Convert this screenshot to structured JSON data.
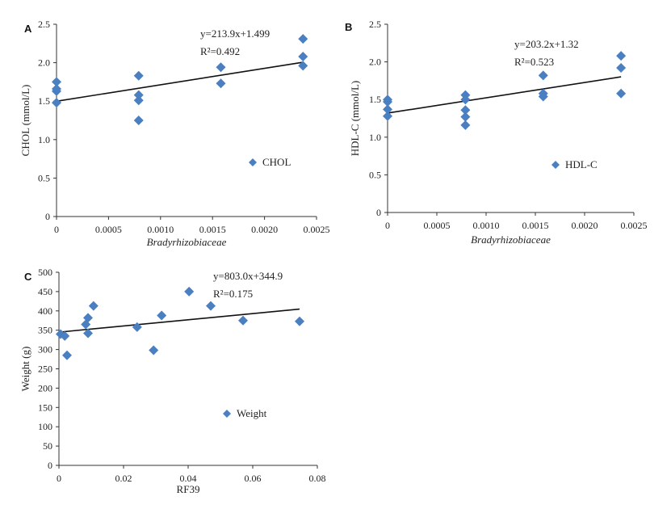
{
  "chart_data": [
    {
      "panel": "A",
      "type": "scatter",
      "xlabel": "Bradyrhizobiaceae",
      "ylabel": "CHOL (mmol/L)",
      "xlim": [
        0,
        0.0025
      ],
      "ylim": [
        0,
        2.5
      ],
      "x_ticks": [
        "0",
        "0.0005",
        "0.0010",
        "0.0015",
        "0.0020",
        "0.0025"
      ],
      "y_ticks": [
        "0",
        "0.5",
        "1.0",
        "1.5",
        "2.0",
        "2.5"
      ],
      "equation": "y=213.9x+1.499",
      "r2": "R²=0.492",
      "legend": "CHOL",
      "color": "#4a7fc1",
      "trendline": {
        "slope": 213.9,
        "intercept": 1.499,
        "x_start": 0,
        "x_end": 0.00237
      },
      "points": [
        [
          0,
          1.75
        ],
        [
          0,
          1.66
        ],
        [
          0,
          1.63
        ],
        [
          0,
          1.48
        ],
        [
          0.00079,
          1.83
        ],
        [
          0.00079,
          1.58
        ],
        [
          0.00079,
          1.51
        ],
        [
          0.00079,
          1.25
        ],
        [
          0.00158,
          1.94
        ],
        [
          0.00158,
          1.73
        ],
        [
          0.00237,
          2.31
        ],
        [
          0.00237,
          2.08
        ],
        [
          0.00237,
          1.96
        ]
      ]
    },
    {
      "panel": "B",
      "type": "scatter",
      "xlabel": "Bradyrhizobiaceae",
      "ylabel": "HDL-C (mmol/L)",
      "xlim": [
        0,
        0.0025
      ],
      "ylim": [
        0,
        2.5
      ],
      "x_ticks": [
        "0",
        "0.0005",
        "0.0010",
        "0.0015",
        "0.0020",
        "0.0025"
      ],
      "y_ticks": [
        "0",
        "0.5",
        "1.0",
        "1.5",
        "2.0",
        "2.5"
      ],
      "equation": "y=203.2x+1.32",
      "r2": "R²=0.523",
      "legend": "HDL-C",
      "color": "#4a7fc1",
      "trendline": {
        "slope": 203.2,
        "intercept": 1.32,
        "x_start": 0,
        "x_end": 0.00237
      },
      "points": [
        [
          0,
          1.5
        ],
        [
          0,
          1.47
        ],
        [
          0,
          1.37
        ],
        [
          0,
          1.28
        ],
        [
          0.00079,
          1.56
        ],
        [
          0.00079,
          1.5
        ],
        [
          0.00079,
          1.36
        ],
        [
          0.00079,
          1.27
        ],
        [
          0.00079,
          1.16
        ],
        [
          0.00158,
          1.82
        ],
        [
          0.00158,
          1.58
        ],
        [
          0.00158,
          1.54
        ],
        [
          0.00237,
          2.08
        ],
        [
          0.00237,
          1.92
        ],
        [
          0.00237,
          1.58
        ]
      ]
    },
    {
      "panel": "C",
      "type": "scatter",
      "xlabel": "RF39",
      "ylabel": "Weight (g)",
      "xlim": [
        0,
        0.08
      ],
      "ylim": [
        0,
        500
      ],
      "x_ticks": [
        "0",
        "0.02",
        "0.04",
        "0.06",
        "0.08"
      ],
      "y_ticks": [
        "0",
        "50",
        "100",
        "150",
        "200",
        "250",
        "300",
        "350",
        "400",
        "450",
        "500"
      ],
      "equation": "y=803.0x+344.9",
      "r2": "R²=0.175",
      "legend": "Weight",
      "color": "#4a7fc1",
      "trendline": {
        "slope": 803.0,
        "intercept": 344.9,
        "x_start": 0,
        "x_end": 0.0745
      },
      "points": [
        [
          0.0005,
          340
        ],
        [
          0.0018,
          335
        ],
        [
          0.0025,
          285
        ],
        [
          0.0083,
          365
        ],
        [
          0.009,
          382
        ],
        [
          0.009,
          342
        ],
        [
          0.0107,
          413
        ],
        [
          0.0242,
          358
        ],
        [
          0.0293,
          298
        ],
        [
          0.0318,
          388
        ],
        [
          0.0403,
          450
        ],
        [
          0.047,
          413
        ],
        [
          0.057,
          375
        ],
        [
          0.0745,
          373
        ]
      ]
    }
  ]
}
